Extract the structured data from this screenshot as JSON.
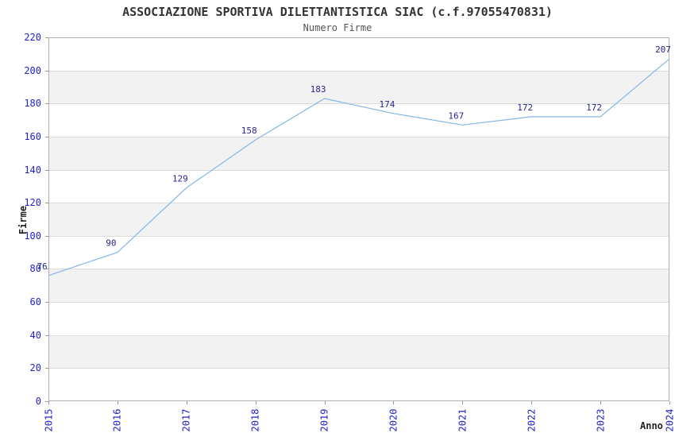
{
  "chart_data": {
    "type": "line",
    "title": "ASSOCIAZIONE SPORTIVA DILETTANTISTICA SIAC (c.f.97055470831)",
    "subtitle": "Numero Firme",
    "xlabel": "Anno",
    "ylabel": "Firme",
    "x": [
      "2015",
      "2016",
      "2017",
      "2018",
      "2019",
      "2020",
      "2021",
      "2022",
      "2023",
      "2024"
    ],
    "values": [
      76,
      90,
      129,
      158,
      183,
      174,
      167,
      172,
      172,
      207
    ],
    "ylim": [
      0,
      220
    ],
    "ytick_step": 20,
    "grid": true,
    "legend": "none",
    "layout": {
      "alternating_bands": true,
      "x_tick_rotation_deg": 90,
      "data_labels_shown": true
    },
    "colors": {
      "line": "#85b5e8",
      "axis_tick_label": "#2222cc",
      "data_label": "#26268c",
      "band": "#f2f2f2",
      "gridline": "#dcdcdc",
      "border": "#b0b0b0",
      "tick_mark": "#999999",
      "title": "#333333",
      "subtitle": "#555555",
      "axis_label": "#222222"
    }
  }
}
